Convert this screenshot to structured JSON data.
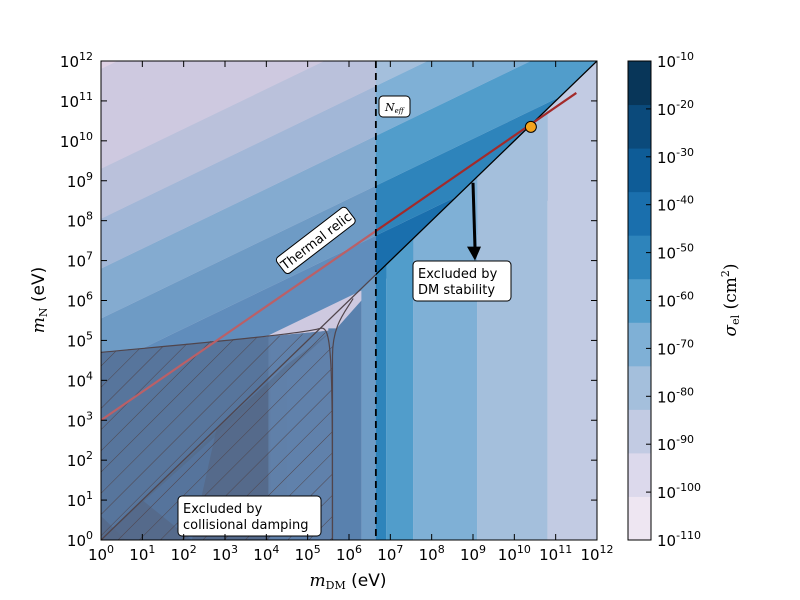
{
  "chart_data": {
    "type": "heatmap",
    "xlabel": "m_DM (eV)",
    "ylabel": "m_N (eV)",
    "colorbar_label": "σ_el (cm²)",
    "xscale": "log",
    "yscale": "log",
    "xlim": [
      1,
      1000000000000
    ],
    "ylim": [
      1,
      1000000000000
    ],
    "x_ticks": [
      {
        "base": "10",
        "exp": "0"
      },
      {
        "base": "10",
        "exp": "1"
      },
      {
        "base": "10",
        "exp": "2"
      },
      {
        "base": "10",
        "exp": "3"
      },
      {
        "base": "10",
        "exp": "4"
      },
      {
        "base": "10",
        "exp": "5"
      },
      {
        "base": "10",
        "exp": "6"
      },
      {
        "base": "10",
        "exp": "7"
      },
      {
        "base": "10",
        "exp": "8"
      },
      {
        "base": "10",
        "exp": "9"
      },
      {
        "base": "10",
        "exp": "10"
      },
      {
        "base": "10",
        "exp": "11"
      },
      {
        "base": "10",
        "exp": "12"
      }
    ],
    "y_ticks": [
      {
        "base": "10",
        "exp": "0"
      },
      {
        "base": "10",
        "exp": "1"
      },
      {
        "base": "10",
        "exp": "2"
      },
      {
        "base": "10",
        "exp": "3"
      },
      {
        "base": "10",
        "exp": "4"
      },
      {
        "base": "10",
        "exp": "5"
      },
      {
        "base": "10",
        "exp": "6"
      },
      {
        "base": "10",
        "exp": "7"
      },
      {
        "base": "10",
        "exp": "8"
      },
      {
        "base": "10",
        "exp": "9"
      },
      {
        "base": "10",
        "exp": "10"
      },
      {
        "base": "10",
        "exp": "11"
      },
      {
        "base": "10",
        "exp": "12"
      }
    ],
    "colorbar": {
      "levels_exp": [
        -110,
        -100,
        -90,
        -80,
        -70,
        -60,
        -50,
        -40,
        -30,
        -20,
        -10
      ],
      "tick_labels": [
        {
          "base": "10",
          "exp": "-110"
        },
        {
          "base": "10",
          "exp": "-100"
        },
        {
          "base": "10",
          "exp": "-90"
        },
        {
          "base": "10",
          "exp": "-80"
        },
        {
          "base": "10",
          "exp": "-70"
        },
        {
          "base": "10",
          "exp": "-60"
        },
        {
          "base": "10",
          "exp": "-50"
        },
        {
          "base": "10",
          "exp": "-40"
        },
        {
          "base": "10",
          "exp": "-30"
        },
        {
          "base": "10",
          "exp": "-20"
        },
        {
          "base": "10",
          "exp": "-10"
        }
      ],
      "colors": [
        "#eee6f2",
        "#dcd9ec",
        "#c2cbe3",
        "#a4bfdc",
        "#7fb0d6",
        "#519dcb",
        "#2e84bb",
        "#1a6fad",
        "#0e5c97",
        "#0b4a7b",
        "#083659"
      ]
    },
    "bands_left": [
      {
        "x_start": 0,
        "x_end": 4.1,
        "bin": 9
      },
      {
        "x_start": 4.1,
        "x_end": 5.6,
        "bin": 8
      },
      {
        "x_start": 5.6,
        "x_end": 6.0,
        "bin": 7
      },
      {
        "x_start": 6.0,
        "x_end": 6.3,
        "bin": 8
      }
    ],
    "bands_right": [
      {
        "x_start": 6.3,
        "x_end": 6.9,
        "bin": 6
      },
      {
        "x_start": 6.9,
        "x_end": 7.55,
        "bin": 5
      },
      {
        "x_start": 7.55,
        "x_end": 9.1,
        "bin": 4
      },
      {
        "x_start": 9.1,
        "x_end": 10.8,
        "bin": 3
      },
      {
        "x_start": 10.8,
        "x_end": 12,
        "bin": 2
      }
    ],
    "upper_bands_note": "contour bands above the stability line, slope 1/2 in log-log",
    "thermal_relic": {
      "label": "Thermal relic",
      "x": [
        0,
        11.5
      ],
      "y": [
        3,
        11.2
      ],
      "color": "#a32a2a"
    },
    "stability_line": {
      "x": [
        5.5,
        12
      ],
      "y": [
        5.5,
        12
      ]
    },
    "collisional_boundary": {
      "x": [
        0,
        5.7
      ],
      "y": [
        4.7,
        5.3
      ]
    },
    "neff": {
      "label": "N_eff",
      "x": 6.65
    },
    "marker": {
      "x": 10.4,
      "y": 10.35,
      "color": "#f5a41c"
    },
    "annotations": [
      {
        "lines": [
          "Excluded by",
          "DM stability"
        ],
        "x": 7.8,
        "y": 6.9
      },
      {
        "lines": [
          "Excluded by",
          "collisional damping"
        ],
        "x": 2.0,
        "y": 1.0
      }
    ],
    "neff_label_base": "N",
    "neff_label_sub": "eff",
    "xlabel_base": "m",
    "xlabel_sub": "DM",
    "xlabel_unit": "(eV)",
    "ylabel_base": "m",
    "ylabel_sub": "N",
    "ylabel_unit": "(eV)",
    "cbar_label_base": "σ",
    "cbar_label_sub": "el",
    "cbar_label_unit": "(cm",
    "cbar_label_pow": "2",
    "cbar_label_close": ")",
    "grid": false
  }
}
